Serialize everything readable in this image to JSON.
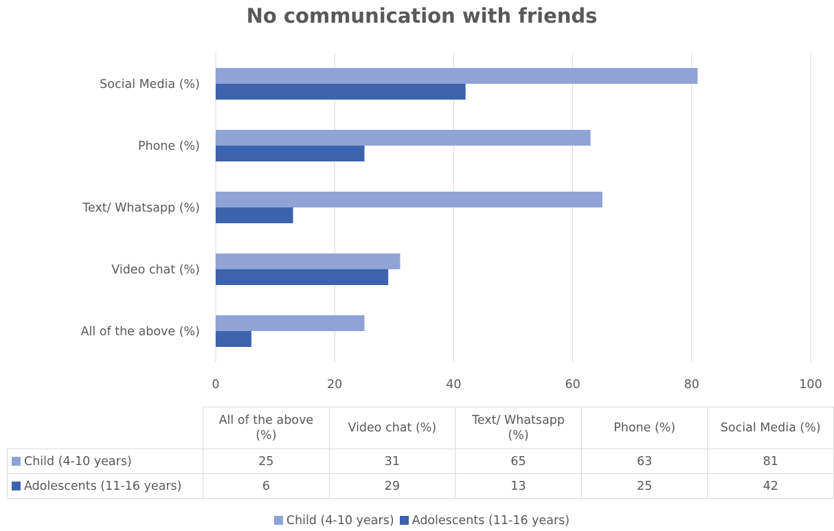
{
  "chart_data": {
    "type": "bar",
    "orientation": "horizontal",
    "title": "No communication with friends",
    "categories": [
      "All of the above (%)",
      "Video chat (%)",
      "Text/ Whatsapp (%)",
      "Phone (%)",
      "Social Media (%)"
    ],
    "series": [
      {
        "name": "Child (4-10 years)",
        "color": "#8fa3d6",
        "values": [
          25,
          31,
          65,
          63,
          81
        ]
      },
      {
        "name": "Adolescents (11-16 years)",
        "color": "#3c63ad",
        "values": [
          6,
          29,
          13,
          25,
          42
        ]
      }
    ],
    "xlim": [
      0,
      100
    ],
    "xticks": [
      0,
      20,
      40,
      60,
      80,
      100
    ],
    "grid": true,
    "legend_position": "bottom",
    "data_table": true,
    "table_headers": [
      "All of the above\n(%)",
      "Video chat (%)",
      "Text/ Whatsapp\n(%)",
      "Phone (%)",
      "Social Media (%)"
    ]
  }
}
